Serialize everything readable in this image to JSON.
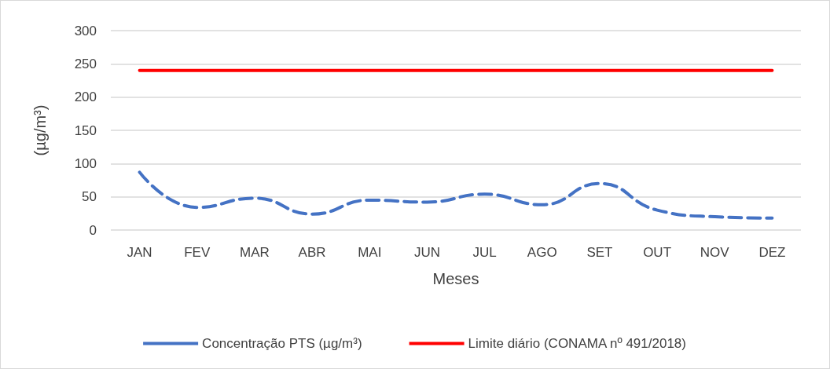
{
  "chart_data": {
    "type": "line",
    "xlabel": "Meses",
    "ylabel": "(µg/m³)",
    "categories": [
      "JAN",
      "FEV",
      "MAR",
      "ABR",
      "MAI",
      "JUN",
      "JUL",
      "AGO",
      "SET",
      "OUT",
      "NOV",
      "DEZ"
    ],
    "series": [
      {
        "name": "Concentração PTS (µg/m³)",
        "color": "#4472c4",
        "line_style": "dashed",
        "values": [
          87,
          34,
          48,
          24,
          45,
          42,
          54,
          38,
          70,
          30,
          20,
          18
        ]
      },
      {
        "name": "Limite diário (CONAMA nº 491/2018)",
        "color": "#ff0000",
        "line_style": "solid",
        "values": [
          240,
          240,
          240,
          240,
          240,
          240,
          240,
          240,
          240,
          240,
          240,
          240
        ]
      }
    ],
    "ylim": [
      0,
      300
    ],
    "yticks": [
      0,
      50,
      100,
      150,
      200,
      250,
      300
    ],
    "grid": "y",
    "legend": "bottom",
    "marker": "none"
  }
}
